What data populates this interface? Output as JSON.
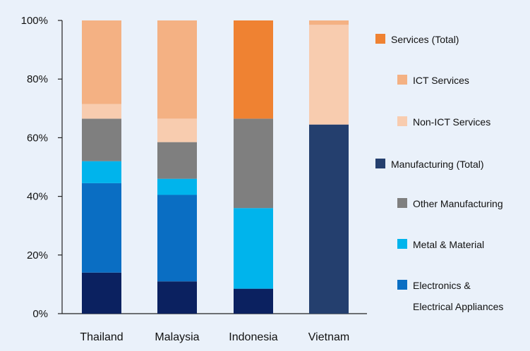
{
  "chart_data": {
    "type": "bar",
    "stacked": true,
    "categories": [
      "Thailand",
      "Malaysia",
      "Indonesia",
      "Vietnam"
    ],
    "ylim": [
      0,
      100
    ],
    "yticks": [
      0,
      20,
      40,
      60,
      80,
      100
    ],
    "ytick_labels": [
      "0%",
      "20%",
      "40%",
      "60%",
      "80%",
      "100%"
    ],
    "grid": false,
    "legend_position": "right",
    "series": [
      {
        "name": "",
        "color": "#0b2160",
        "values": [
          14,
          11,
          8.5,
          0
        ]
      },
      {
        "name": "Electronics & Electrical Appliances",
        "color": "#0a6ec3",
        "values": [
          30.5,
          29.5,
          0,
          0
        ]
      },
      {
        "name": "Metal & Material",
        "color": "#00b4ec",
        "values": [
          7.5,
          5.5,
          27.5,
          0
        ]
      },
      {
        "name": "Other Manufacturing",
        "color": "#7f7f7f",
        "values": [
          14.5,
          12.5,
          30.5,
          0
        ]
      },
      {
        "name": "Manufacturing (Total)",
        "color": "#243f6e",
        "values": [
          0,
          0,
          0,
          64.5
        ]
      },
      {
        "name": "Non-ICT Services",
        "color": "#f8ccaf",
        "values": [
          5,
          8,
          0,
          34
        ]
      },
      {
        "name": "ICT Services",
        "color": "#f4b183",
        "values": [
          28.5,
          33.5,
          0,
          1.5
        ]
      },
      {
        "name": "Services (Total)",
        "color": "#ef8232",
        "values": [
          0,
          0,
          33.5,
          0
        ]
      }
    ],
    "legend": [
      {
        "label": "Services (Total)",
        "color": "#ef8232",
        "indent": false
      },
      {
        "label": "ICT Services",
        "color": "#f4b183",
        "indent": true
      },
      {
        "label": "Non-ICT Services",
        "color": "#f8ccaf",
        "indent": true
      },
      {
        "label": "Manufacturing (Total)",
        "color": "#243f6e",
        "indent": false
      },
      {
        "label": "Other Manufacturing",
        "color": "#7f7f7f",
        "indent": true
      },
      {
        "label": "Metal & Material",
        "color": "#00b4ec",
        "indent": true
      },
      {
        "label": "Electronics & Electrical Appliances",
        "color": "#0a6ec3",
        "indent": true,
        "lines": [
          "Electronics &",
          "Electrical Appliances"
        ]
      }
    ]
  }
}
